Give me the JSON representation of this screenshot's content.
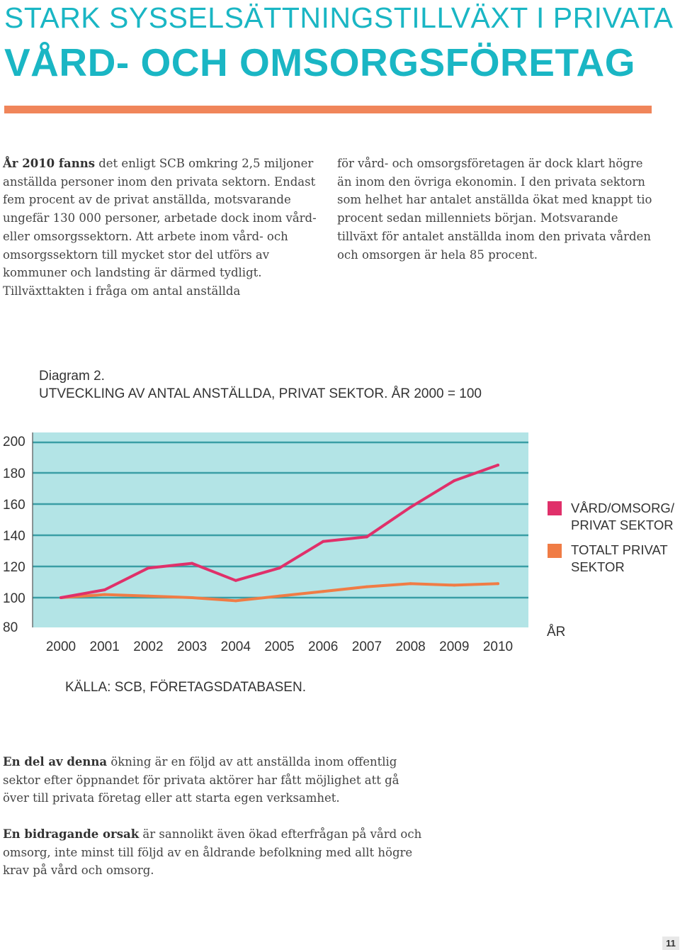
{
  "header": {
    "title_line1": "STARK SYSSELSÄTTNINGSTILLVÄXT I PRIVATA",
    "title_line2": "VÅRD- OCH OMSORGSFÖRETAG"
  },
  "intro": {
    "col1_bold": "År 2010 fanns",
    "col1_text": " det enligt SCB omkring 2,5 miljoner anställda personer inom den privata sektorn. Endast fem procent av de privat anställda, motsvarande ungefär 130 000 personer, arbetade dock inom vård- eller omsorgssektorn. Att arbete inom vård- och omsorgssektorn till mycket stor del utförs av kommuner och landsting är därmed tydligt. Tillväxttakten i fråga om antal anställda",
    "col2_text": "för vård- och omsorgsföretagen är dock klart högre än inom den övriga ekonomin. I den privata sektorn som helhet har antalet anställda ökat med knappt tio procent sedan millenniets början. Motsvarande tillväxt för antalet anställda inom den privata vården och omsorgen är hela 85 procent."
  },
  "diagram": {
    "label": "Diagram 2.",
    "heading": "UTVECKLING AV ANTAL ANSTÄLLDA, PRIVAT SEKTOR. ÅR 2000 = 100",
    "source": "KÄLLA: SCB, FÖRETAGSDATABASEN.",
    "x_axis_unit": "ÅR"
  },
  "chart_data": {
    "type": "line",
    "title": "UTVECKLING AV ANTAL ANSTÄLLDA, PRIVAT SEKTOR. ÅR 2000 = 100",
    "xlabel": "ÅR",
    "ylabel": "",
    "x": [
      "2000",
      "2001",
      "2002",
      "2003",
      "2004",
      "2005",
      "2006",
      "2007",
      "2008",
      "2009",
      "2010"
    ],
    "yticks": [
      "200",
      "180",
      "160",
      "140",
      "120",
      "100",
      "80"
    ],
    "ylim": [
      80,
      200
    ],
    "grid": true,
    "legend_position": "right",
    "series": [
      {
        "name": "VÅRD/OMSORG/ PRIVAT SEKTOR",
        "color": "#e0306a",
        "values": [
          100,
          105,
          119,
          122,
          111,
          119,
          136,
          139,
          158,
          175,
          185
        ]
      },
      {
        "name": "TOTALT PRIVAT SEKTOR",
        "color": "#f07c45",
        "values": [
          100,
          102,
          101,
          100,
          98,
          101,
          104,
          107,
          109,
          108,
          109
        ]
      }
    ]
  },
  "legend": {
    "item1_line1": "VÅRD/OMSORG/",
    "item1_line2": "PRIVAT SEKTOR",
    "item2_line1": "TOTALT PRIVAT",
    "item2_line2": "SEKTOR"
  },
  "body": {
    "p1_bold": "En del av denna",
    "p1_text": " ökning är en följd av att anställda inom offentlig sektor efter öppnandet för privata aktörer har fått möjlighet att gå över till privata företag eller att starta egen verksamhet.",
    "p2_bold": "En bidragande orsak",
    "p2_text": " är sannolikt även ökad efterfrågan på vård och omsorg, inte minst till följd av en åldrande befolkning med allt högre krav på vård och omsorg."
  },
  "footer": {
    "page_number": "11"
  },
  "colors": {
    "accent": "#1ab6c4",
    "rule": "#f0855a",
    "plot_bg": "#b3e4e6",
    "grid": "#3a9ea5"
  }
}
